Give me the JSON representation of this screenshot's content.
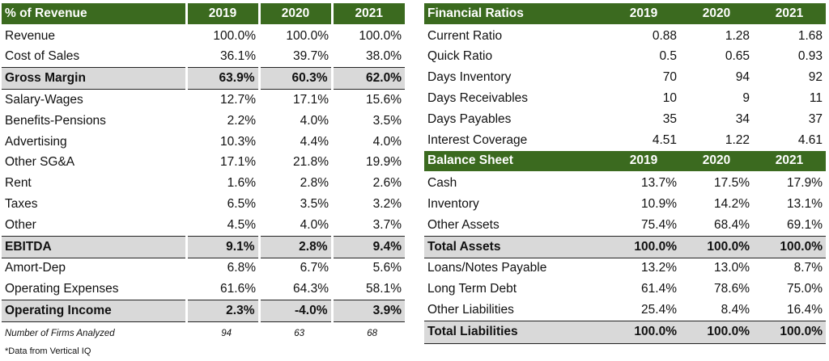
{
  "left": {
    "header": [
      "% of Revenue",
      "2019",
      "2020",
      "2021"
    ],
    "rows": [
      {
        "label": "Revenue",
        "values": [
          "100.0%",
          "100.0%",
          "100.0%"
        ],
        "type": "normal"
      },
      {
        "label": "Cost of Sales",
        "values": [
          "36.1%",
          "39.7%",
          "38.0%"
        ],
        "type": "normal"
      },
      {
        "label": "Gross Margin",
        "values": [
          "63.9%",
          "60.3%",
          "62.0%"
        ],
        "type": "subtotal"
      },
      {
        "label": "Salary-Wages",
        "values": [
          "12.7%",
          "17.1%",
          "15.6%"
        ],
        "type": "normal"
      },
      {
        "label": "Benefits-Pensions",
        "values": [
          "2.2%",
          "4.0%",
          "3.5%"
        ],
        "type": "normal"
      },
      {
        "label": "Advertising",
        "values": [
          "10.3%",
          "4.4%",
          "4.0%"
        ],
        "type": "normal"
      },
      {
        "label": "Other SG&A",
        "values": [
          "17.1%",
          "21.8%",
          "19.9%"
        ],
        "type": "normal"
      },
      {
        "label": "Rent",
        "values": [
          "1.6%",
          "2.8%",
          "2.6%"
        ],
        "type": "normal"
      },
      {
        "label": "Taxes",
        "values": [
          "6.5%",
          "3.5%",
          "3.2%"
        ],
        "type": "normal"
      },
      {
        "label": "Other",
        "values": [
          "4.5%",
          "4.0%",
          "3.7%"
        ],
        "type": "normal"
      },
      {
        "label": "EBITDA",
        "values": [
          "9.1%",
          "2.8%",
          "9.4%"
        ],
        "type": "subtotal"
      },
      {
        "label": "Amort-Dep",
        "values": [
          "6.8%",
          "6.7%",
          "5.6%"
        ],
        "type": "normal"
      },
      {
        "label": "Operating Expenses",
        "values": [
          "61.6%",
          "64.3%",
          "58.1%"
        ],
        "type": "normal"
      },
      {
        "label": "Operating Income",
        "values": [
          "2.3%",
          "-4.0%",
          "3.9%"
        ],
        "type": "subtotal"
      }
    ],
    "footer": {
      "label": "Number of Firms Analyzed",
      "values": [
        "94",
        "63",
        "68"
      ]
    }
  },
  "right": {
    "ratios_header": [
      "Financial Ratios",
      "2019",
      "2020",
      "2021"
    ],
    "ratios": [
      {
        "label": "Current Ratio",
        "values": [
          "0.88",
          "1.28",
          "1.68"
        ]
      },
      {
        "label": "Quick Ratio",
        "values": [
          "0.5",
          "0.65",
          "0.93"
        ]
      },
      {
        "label": "Days Inventory",
        "values": [
          "70",
          "94",
          "92"
        ]
      },
      {
        "label": "Days Receivables",
        "values": [
          "10",
          "9",
          "11"
        ]
      },
      {
        "label": "Days Payables",
        "values": [
          "35",
          "34",
          "37"
        ]
      },
      {
        "label": "Interest Coverage",
        "values": [
          "4.51",
          "1.22",
          "4.61"
        ]
      }
    ],
    "balance_header": [
      "Balance Sheet",
      "2019",
      "2020",
      "2021"
    ],
    "balance": [
      {
        "label": "Cash",
        "values": [
          "13.7%",
          "17.5%",
          "17.9%"
        ],
        "type": "normal"
      },
      {
        "label": "Inventory",
        "values": [
          "10.9%",
          "14.2%",
          "13.1%"
        ],
        "type": "normal"
      },
      {
        "label": "Other Assets",
        "values": [
          "75.4%",
          "68.4%",
          "69.1%"
        ],
        "type": "normal"
      },
      {
        "label": "Total Assets",
        "values": [
          "100.0%",
          "100.0%",
          "100.0%"
        ],
        "type": "subtotal"
      },
      {
        "label": "Loans/Notes Payable",
        "values": [
          "13.2%",
          "13.0%",
          "8.7%"
        ],
        "type": "normal"
      },
      {
        "label": "Long Term Debt",
        "values": [
          "61.4%",
          "78.6%",
          "75.0%"
        ],
        "type": "normal"
      },
      {
        "label": "Other Liabilities",
        "values": [
          "25.4%",
          "8.4%",
          "16.4%"
        ],
        "type": "normal"
      },
      {
        "label": "Total Liabilities",
        "values": [
          "100.0%",
          "100.0%",
          "100.0%"
        ],
        "type": "final"
      }
    ]
  },
  "note": "*Data from Vertical IQ",
  "colors": {
    "header_green": "#3b6a1f",
    "subtotal_gray": "#d9d9d9"
  }
}
